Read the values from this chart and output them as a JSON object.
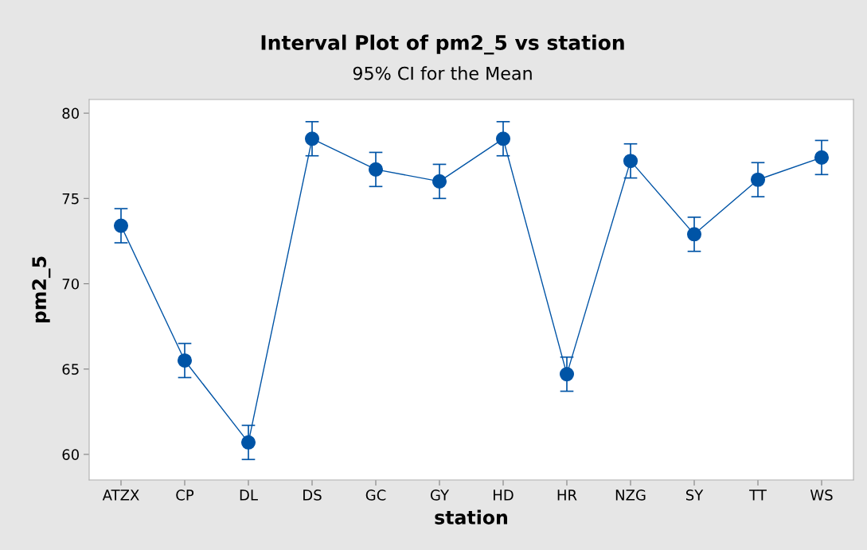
{
  "chart_data": {
    "type": "line",
    "title": "Interval Plot of pm2_5 vs station",
    "subtitle": "95% CI for the Mean",
    "xlabel": "station",
    "ylabel": "pm2_5",
    "categories": [
      "ATZX",
      "CP",
      "DL",
      "DS",
      "GC",
      "GY",
      "HD",
      "HR",
      "NZG",
      "SY",
      "TT",
      "WS"
    ],
    "series": [
      {
        "color": "#0054a6",
        "values": [
          73.4,
          65.5,
          60.7,
          78.5,
          76.7,
          76.0,
          78.5,
          64.7,
          77.2,
          72.9,
          76.1,
          77.4
        ],
        "errors": [
          1.0,
          1.0,
          1.0,
          1.0,
          1.0,
          1.0,
          1.0,
          1.0,
          1.0,
          1.0,
          1.0,
          1.0
        ]
      }
    ],
    "ylim": [
      58.5,
      80.8
    ],
    "yticks": [
      60,
      65,
      70,
      75,
      80
    ],
    "marker": "circle",
    "line_style": "solid",
    "grid": false,
    "legend": false
  }
}
